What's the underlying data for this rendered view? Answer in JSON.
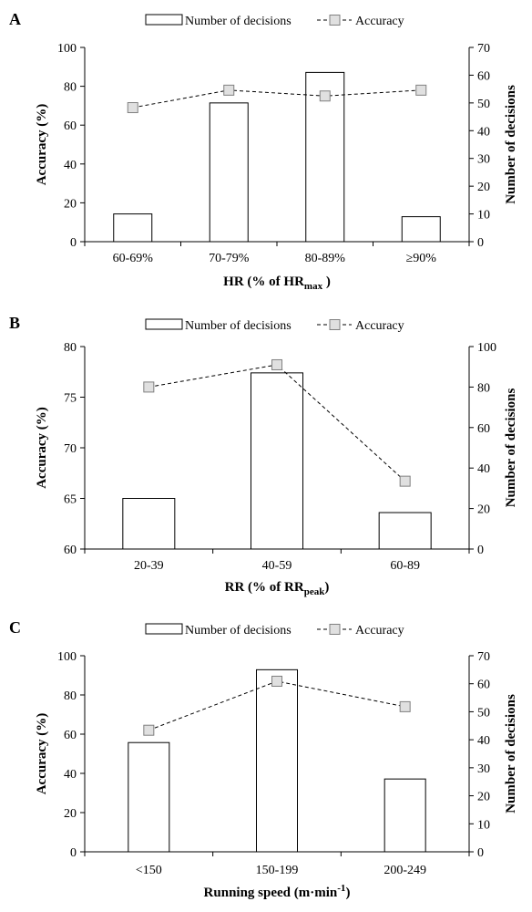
{
  "chart_data": [
    {
      "type": "bar",
      "panel": "A",
      "categories": [
        "60-69%",
        "70-79%",
        "80-89%",
        "≥90%"
      ],
      "xlabel": "HR (% of HR",
      "xlabel_sub": "max",
      "xlabel_end": " )",
      "ylabel_left": "Accuracy (%)",
      "ylabel_right": "Number of decisions",
      "left_ylim": [
        0,
        100
      ],
      "left_ticks": [
        0,
        20,
        40,
        60,
        80,
        100
      ],
      "right_ylim": [
        0,
        70
      ],
      "right_ticks": [
        0,
        10,
        20,
        30,
        40,
        50,
        60,
        70
      ],
      "series": [
        {
          "name": "Number of decisions",
          "kind": "bar",
          "axis": "right",
          "values": [
            10,
            50,
            61,
            9
          ]
        },
        {
          "name": "Accuracy",
          "kind": "line",
          "axis": "left",
          "values": [
            69,
            78,
            75,
            78
          ]
        }
      ]
    },
    {
      "type": "bar",
      "panel": "B",
      "categories": [
        "20-39",
        "40-59",
        "60-89"
      ],
      "xlabel": "RR (% of RR",
      "xlabel_sub": "peak",
      "xlabel_end": ")",
      "ylabel_left": "Accuracy (%)",
      "ylabel_right": "Number of decisions",
      "left_ylim": [
        60,
        80
      ],
      "left_ticks": [
        60,
        65,
        70,
        75,
        80
      ],
      "right_ylim": [
        0,
        100
      ],
      "right_ticks": [
        0,
        20,
        40,
        60,
        80,
        100
      ],
      "series": [
        {
          "name": "Number of decisions",
          "kind": "bar",
          "axis": "right",
          "values": [
            25,
            87,
            18
          ]
        },
        {
          "name": "Accuracy",
          "kind": "line",
          "axis": "left",
          "values": [
            76,
            78.2,
            66.7
          ]
        }
      ]
    },
    {
      "type": "bar",
      "panel": "C",
      "categories": [
        "<150",
        "150-199",
        "200-249"
      ],
      "xlabel": "Running speed (m·min",
      "xlabel_sup": "-1",
      "xlabel_end": ")",
      "ylabel_left": "Accuracy (%)",
      "ylabel_right": "Number of decisions",
      "left_ylim": [
        0,
        100
      ],
      "left_ticks": [
        0,
        20,
        40,
        60,
        80,
        100
      ],
      "right_ylim": [
        0,
        70
      ],
      "right_ticks": [
        0,
        10,
        20,
        30,
        40,
        50,
        60,
        70
      ],
      "series": [
        {
          "name": "Number of decisions",
          "kind": "bar",
          "axis": "right",
          "values": [
            39,
            65,
            26
          ]
        },
        {
          "name": "Accuracy",
          "kind": "line",
          "axis": "left",
          "values": [
            62,
            87,
            74
          ]
        }
      ]
    }
  ]
}
